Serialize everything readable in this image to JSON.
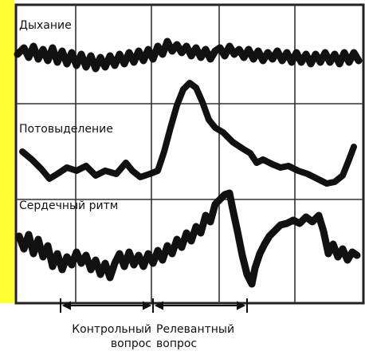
{
  "colors": {
    "accent_bar": "#ffff33",
    "trace": "#111111",
    "grid": "#222222",
    "background": "#ffffff"
  },
  "channels": [
    {
      "label": "Дыхание"
    },
    {
      "label": "Потовыделение"
    },
    {
      "label": "Сердечный ритм"
    }
  ],
  "captions": {
    "control_line1": "Контрольный",
    "control_line2": "вопрос",
    "relevant_line1": "Релевантный",
    "relevant_line2": "вопрос"
  }
}
